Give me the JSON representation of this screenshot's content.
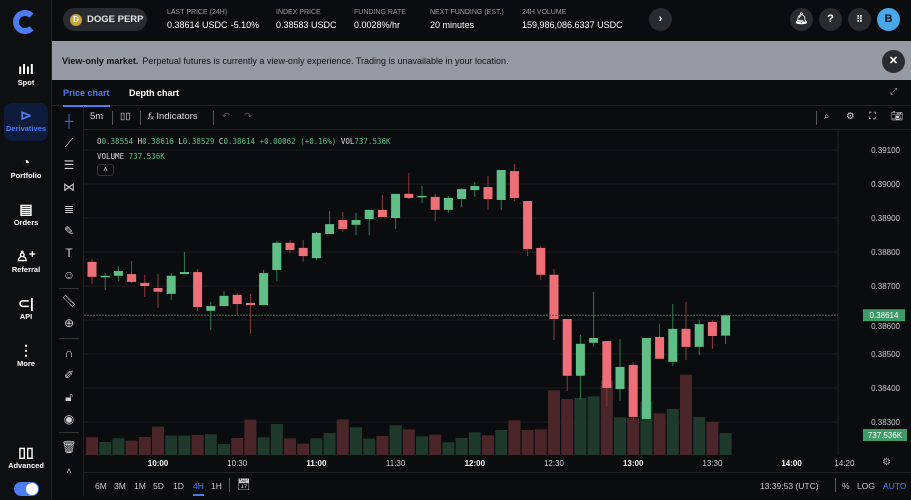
{
  "sidebar": {
    "items": [
      {
        "label": "Spot",
        "icon": "spot-chart-icon"
      },
      {
        "label": "Derivatives",
        "icon": "derivatives-icon",
        "active": true
      },
      {
        "label": "Portfolio",
        "icon": "pie-chart-icon"
      },
      {
        "label": "Orders",
        "icon": "document-icon"
      },
      {
        "label": "Referral",
        "icon": "user-plus-icon"
      },
      {
        "label": "API",
        "icon": "api-icon"
      },
      {
        "label": "More",
        "icon": "more-vertical-icon"
      }
    ],
    "advanced_label": "Advanced",
    "advanced_on": true
  },
  "topbar": {
    "market": "DOGE PERP",
    "coin_glyph": "D",
    "stats": [
      {
        "label": "LAST PRICE (24H)",
        "value": "0.38614 USDC",
        "change": "-5.10%"
      },
      {
        "label": "INDEX PRICE",
        "value": "0.38583 USDC"
      },
      {
        "label": "FUNDING RATE",
        "value": "0.0028%/hr"
      },
      {
        "label": "NEXT FUNDING (EST.)",
        "value": "20 minutes"
      },
      {
        "label": "24H VOLUME",
        "value": "159,986,086.6337 USDC"
      }
    ],
    "avatar": "B",
    "help": "?"
  },
  "banner": {
    "title": "View-only market.",
    "text": "Perpetual futures is currently a view-only experience. Trading is unavailable in your location."
  },
  "tabs": [
    {
      "label": "Price chart",
      "active": true
    },
    {
      "label": "Depth chart"
    }
  ],
  "toolbar": {
    "interval": "5m",
    "indicators": "Indicators"
  },
  "legend": {
    "o_label": "O",
    "o": "0.38554",
    "h_label": "H",
    "h": "0.38616",
    "l_label": "L",
    "l": "0.38529",
    "c_label": "C",
    "c": "0.38614",
    "change": "+0.00062 (+0.16%)",
    "vol_label": "VOL",
    "vol": "737.536K",
    "volume_label": "VOLUME",
    "volume": "737.536K"
  },
  "bottom": {
    "ranges": [
      "6M",
      "3M",
      "1M",
      "5D",
      "1D",
      "4H",
      "1H"
    ],
    "active_range": "4H",
    "clock": "13:39:53 (UTC)",
    "pct": "%",
    "log": "LOG",
    "auto": "AUTO"
  },
  "colors": {
    "up": "#5fbf86",
    "down": "#ef6f78",
    "accent": "#4d7cf0",
    "banner": "#959aa3"
  },
  "chart_data": {
    "type": "candlestick",
    "interval": "5m",
    "start_time": "09:35",
    "ylim": [
      0.3826,
      0.3914
    ],
    "y_ticks": [
      "0.39100",
      "0.39000",
      "0.38900",
      "0.38800",
      "0.38700",
      "0.38600",
      "0.38500",
      "0.38400",
      "0.38300"
    ],
    "x_ticks": [
      {
        "t": "10:00",
        "major": true
      },
      {
        "t": "10:30"
      },
      {
        "t": "11:00",
        "major": true
      },
      {
        "t": "11:30"
      },
      {
        "t": "12:00",
        "major": true
      },
      {
        "t": "12:30"
      },
      {
        "t": "13:00",
        "major": true
      },
      {
        "t": "13:30"
      },
      {
        "t": "14:00",
        "major": true
      },
      {
        "t": "14:20"
      }
    ],
    "last_price": "0.38614",
    "last_volume": "737.536K",
    "ohlc": [
      [
        0.38771,
        0.3878,
        0.38706,
        0.38727
      ],
      [
        0.38727,
        0.38738,
        0.38688,
        0.3873
      ],
      [
        0.3873,
        0.38759,
        0.38715,
        0.38744
      ],
      [
        0.38735,
        0.38774,
        0.38709,
        0.38712
      ],
      [
        0.38709,
        0.38733,
        0.38668,
        0.387
      ],
      [
        0.38694,
        0.38735,
        0.38636,
        0.38683
      ],
      [
        0.38677,
        0.38738,
        0.38659,
        0.3873
      ],
      [
        0.38735,
        0.388,
        0.38735,
        0.38741
      ],
      [
        0.38741,
        0.3875,
        0.38627,
        0.38638
      ],
      [
        0.38627,
        0.38653,
        0.38571,
        0.38641
      ],
      [
        0.38641,
        0.38685,
        0.38641,
        0.38671
      ],
      [
        0.38674,
        0.3868,
        0.38615,
        0.38647
      ],
      [
        0.3865,
        0.38677,
        0.38559,
        0.38644
      ],
      [
        0.38644,
        0.38747,
        0.38644,
        0.38738
      ],
      [
        0.38747,
        0.38832,
        0.38715,
        0.38827
      ],
      [
        0.38827,
        0.38835,
        0.38797,
        0.38806
      ],
      [
        0.38812,
        0.38835,
        0.38771,
        0.38788
      ],
      [
        0.38782,
        0.38859,
        0.38777,
        0.38856
      ],
      [
        0.38853,
        0.38921,
        0.38853,
        0.38882
      ],
      [
        0.38894,
        0.38918,
        0.38859,
        0.38868
      ],
      [
        0.3888,
        0.38915,
        0.3885,
        0.38894
      ],
      [
        0.38897,
        0.38924,
        0.3885,
        0.38924
      ],
      [
        0.38924,
        0.38968,
        0.38903,
        0.38903
      ],
      [
        0.389,
        0.38971,
        0.38868,
        0.38971
      ],
      [
        0.38971,
        0.39032,
        0.38956,
        0.38959
      ],
      [
        0.38962,
        0.38994,
        0.38944,
        0.38965
      ],
      [
        0.38962,
        0.38971,
        0.38891,
        0.38924
      ],
      [
        0.38924,
        0.38965,
        0.38915,
        0.38959
      ],
      [
        0.38956,
        0.38988,
        0.38932,
        0.38985
      ],
      [
        0.38982,
        0.39006,
        0.38962,
        0.38994
      ],
      [
        0.38991,
        0.39024,
        0.38924,
        0.38956
      ],
      [
        0.38953,
        0.39041,
        0.38924,
        0.39041
      ],
      [
        0.39038,
        0.39059,
        0.3895,
        0.38959
      ],
      [
        0.3895,
        0.3895,
        0.38788,
        0.38809
      ],
      [
        0.38812,
        0.38818,
        0.38718,
        0.38733
      ],
      [
        0.38733,
        0.3875,
        0.38541,
        0.38603
      ],
      [
        0.38603,
        0.38603,
        0.38391,
        0.38436
      ],
      [
        0.38436,
        0.38556,
        0.38365,
        0.3853
      ],
      [
        0.38533,
        0.38683,
        0.38521,
        0.38547
      ],
      [
        0.38538,
        0.38538,
        0.38347,
        0.384
      ],
      [
        0.38397,
        0.38544,
        0.38362,
        0.38462
      ],
      [
        0.38468,
        0.38477,
        0.38306,
        0.38315
      ],
      [
        0.38309,
        0.38547,
        0.38309,
        0.38547
      ],
      [
        0.3855,
        0.38588,
        0.38486,
        0.38486
      ],
      [
        0.38477,
        0.38647,
        0.38465,
        0.38574
      ],
      [
        0.38574,
        0.38653,
        0.38482,
        0.38521
      ],
      [
        0.38521,
        0.386,
        0.38497,
        0.38588
      ],
      [
        0.38594,
        0.386,
        0.38515,
        0.38553
      ],
      [
        0.38554,
        0.38616,
        0.38529,
        0.38614
      ]
    ],
    "volume_k": [
      593,
      436,
      558,
      480,
      603,
      949,
      648,
      648,
      670,
      692,
      369,
      570,
      1184,
      593,
      1039,
      558,
      380,
      558,
      737,
      1195,
      927,
      547,
      637,
      994,
      860,
      626,
      681,
      425,
      570,
      760,
      659,
      838,
      1162,
      838,
      860,
      2167,
      1876,
      1910,
      1966,
      2500,
      1262,
      1228,
      1776,
      1396,
      1541,
      2691,
      1273,
      1106,
      737.536
    ]
  }
}
